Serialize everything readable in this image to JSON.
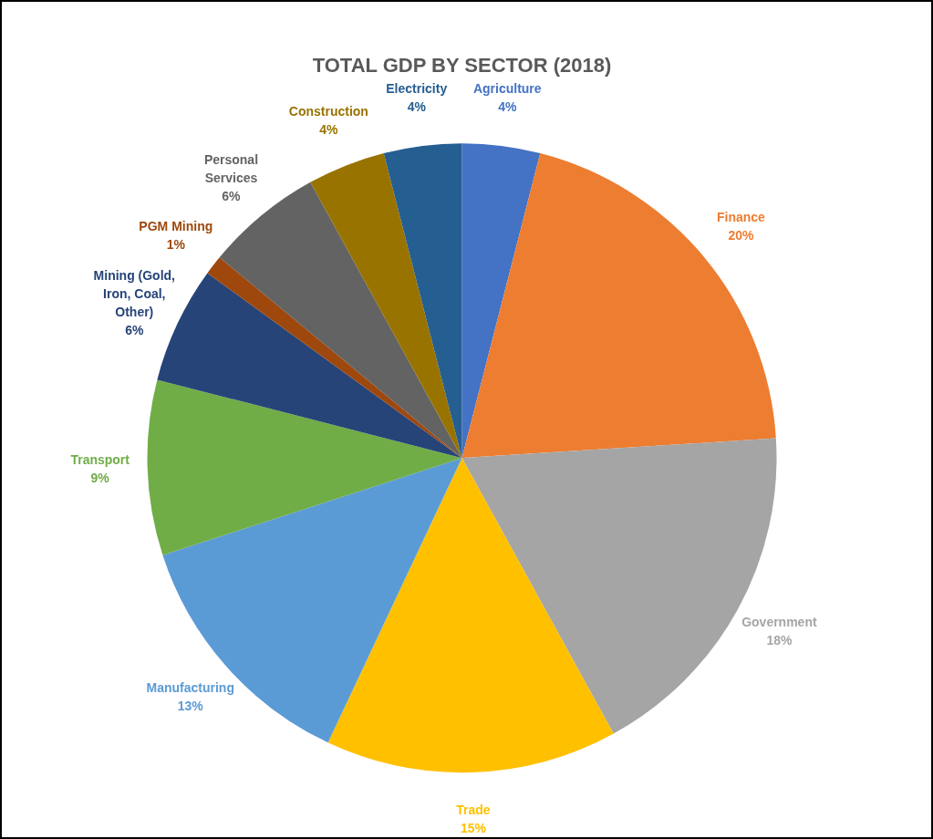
{
  "chart_data": {
    "type": "pie",
    "title": "TOTAL GDP BY SECTOR (2018)",
    "categories": [
      "Agriculture",
      "Finance",
      "Government",
      "Trade",
      "Manufacturing",
      "Transport",
      "Mining (Gold, Iron, Coal, Other)",
      "PGM Mining",
      "Personal Services",
      "Construction",
      "Electricity"
    ],
    "values": [
      4,
      20,
      18,
      15,
      13,
      9,
      6,
      1,
      6,
      4,
      4
    ],
    "colors": [
      "#4472c4",
      "#ed7d31",
      "#a5a5a5",
      "#ffc000",
      "#5b9bd5",
      "#70ad47",
      "#264478",
      "#9e480e",
      "#636363",
      "#997300",
      "#255e91"
    ],
    "value_labels": [
      "4%",
      "20%",
      "18%",
      "15%",
      "13%",
      "9%",
      "6%",
      "1%",
      "6%",
      "4%",
      "4%"
    ],
    "legend": false
  }
}
